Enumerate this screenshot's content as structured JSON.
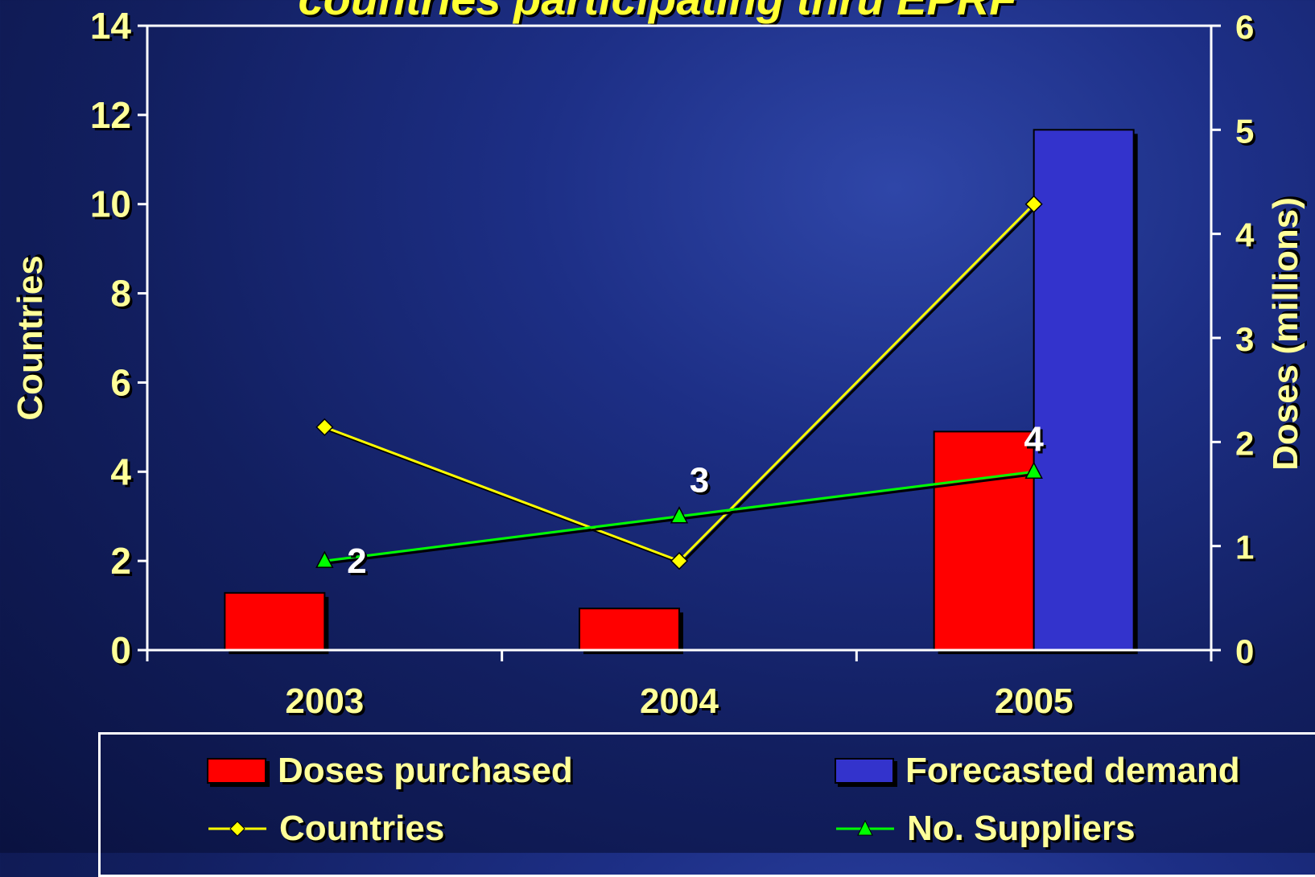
{
  "title": "countries participating thru EPRF",
  "colors": {
    "doses_purchased": "#ff0000",
    "forecasted_demand": "#3333cc",
    "countries": "#ffff00",
    "suppliers": "#00ff00",
    "text": "#ffff99",
    "value_label": "#ffffff"
  },
  "chart_data": {
    "type": "bar",
    "categories": [
      "2003",
      "2004",
      "2005"
    ],
    "ylabel": "Countries",
    "y2label": "Doses (millions)",
    "ylim": [
      0,
      14
    ],
    "y2lim": [
      0,
      6
    ],
    "yticks": [
      "0",
      "2",
      "4",
      "6",
      "8",
      "10",
      "12",
      "14"
    ],
    "y2ticks": [
      "0",
      "1",
      "2",
      "3",
      "4",
      "5",
      "6"
    ],
    "series": [
      {
        "name": "Doses purchased",
        "type": "bar",
        "axis": "right",
        "values": [
          0.55,
          0.4,
          2.1
        ]
      },
      {
        "name": "Forecasted demand",
        "type": "bar",
        "axis": "right",
        "values": [
          null,
          null,
          5.0
        ]
      },
      {
        "name": "Countries",
        "type": "line",
        "marker": "diamond",
        "axis": "left",
        "values": [
          5,
          2,
          10
        ]
      },
      {
        "name": "No. Suppliers",
        "type": "line",
        "marker": "triangle",
        "axis": "left",
        "values": [
          2,
          3,
          4
        ],
        "data_labels": [
          "2",
          "3",
          "4"
        ]
      }
    ]
  },
  "legend": {
    "doses_purchased": "Doses purchased",
    "forecasted_demand": "Forecasted demand",
    "countries": "Countries",
    "suppliers": "No. Suppliers"
  }
}
